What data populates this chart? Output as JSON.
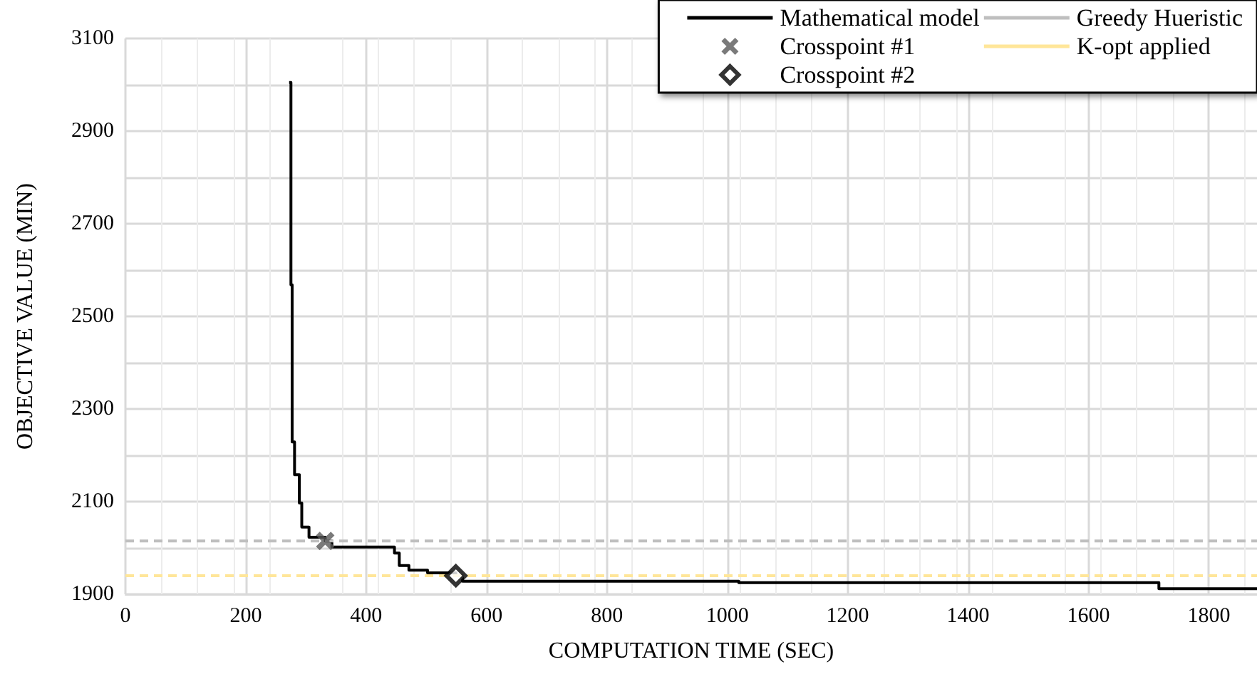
{
  "chart_data": {
    "type": "line",
    "xlabel": "COMPUTATION TIME (SEC)",
    "ylabel": "OBJECTIVE VALUE (MIN)",
    "xlim": [
      0,
      1880
    ],
    "ylim": [
      1900,
      3100
    ],
    "xticks": [
      0,
      200,
      400,
      600,
      800,
      1000,
      1200,
      1400,
      1600,
      1800
    ],
    "yticks": [
      1900,
      {
        "value": 2000,
        "label": null
      },
      2100,
      {
        "value": 2200,
        "label": null
      },
      2300,
      {
        "value": 2400,
        "label": null
      },
      2500,
      {
        "value": 2600,
        "label": null
      },
      2700,
      {
        "value": 2800,
        "label": null
      },
      2900,
      {
        "value": 3000,
        "label": null
      },
      3100
    ],
    "grid": true,
    "legend": "top right",
    "series": [
      {
        "name": "Mathematical model",
        "type": "step",
        "color": "#000000",
        "marker": "none",
        "line_style": "solid",
        "x": [
          272,
          275,
          277,
          281,
          289,
          293,
          305,
          332,
          343,
          431,
          447,
          455,
          471,
          502,
          549,
          560,
          1019,
          1717,
          1880
        ],
        "values": [
          3005,
          2568,
          2229,
          2158,
          2097,
          2045,
          2023,
          2015,
          2002,
          2002,
          1989,
          1962,
          1952,
          1946,
          1940,
          1928,
          1925,
          1912,
          1912
        ]
      },
      {
        "name": "Crosspoint #1",
        "type": "scatter",
        "color": "#595959",
        "marker": "cross",
        "x": [
          332
        ],
        "values": [
          2015
        ]
      },
      {
        "name": "Crosspoint #2",
        "type": "scatter",
        "color": "#000000",
        "marker": "diamond",
        "x": [
          549
        ],
        "values": [
          1940
        ]
      },
      {
        "name": "Greedy Hueristic",
        "type": "line",
        "color": "#bfbfbf",
        "marker": "none",
        "line_style": "dashed",
        "x": [
          0,
          1880
        ],
        "values": [
          2015,
          2015
        ]
      },
      {
        "name": "K-opt applied",
        "type": "line",
        "color": "#ffe699",
        "marker": "none",
        "line_style": "dashed",
        "x": [
          0,
          1880
        ],
        "values": [
          1940,
          1940
        ]
      }
    ]
  }
}
